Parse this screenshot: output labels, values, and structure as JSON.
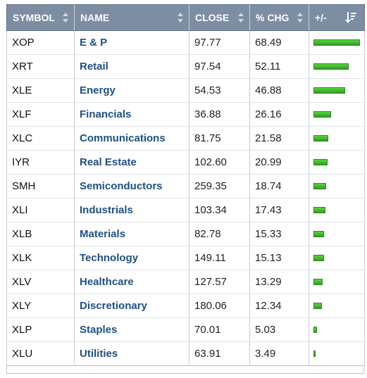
{
  "columns": {
    "symbol": "SYMBOL",
    "name": "NAME",
    "close": "CLOSE",
    "pct_chg": "% CHG",
    "plus_minus": "+/-"
  },
  "colors": {
    "header_bg": "#7d8ea3",
    "bar_green": "#3fb82c",
    "name_link": "#234f83"
  },
  "bar_max": 68.49,
  "rows": [
    {
      "symbol": "XOP",
      "name": "E & P",
      "close": "97.77",
      "pct": "68.49",
      "pct_value": 68.49
    },
    {
      "symbol": "XRT",
      "name": "Retail",
      "close": "97.54",
      "pct": "52.11",
      "pct_value": 52.11
    },
    {
      "symbol": "XLE",
      "name": "Energy",
      "close": "54.53",
      "pct": "46.88",
      "pct_value": 46.88
    },
    {
      "symbol": "XLF",
      "name": "Financials",
      "close": "36.88",
      "pct": "26.16",
      "pct_value": 26.16
    },
    {
      "symbol": "XLC",
      "name": "Communications",
      "close": "81.75",
      "pct": "21.58",
      "pct_value": 21.58
    },
    {
      "symbol": "IYR",
      "name": "Real Estate",
      "close": "102.60",
      "pct": "20.99",
      "pct_value": 20.99
    },
    {
      "symbol": "SMH",
      "name": "Semiconductors",
      "close": "259.35",
      "pct": "18.74",
      "pct_value": 18.74
    },
    {
      "symbol": "XLI",
      "name": "Industrials",
      "close": "103.34",
      "pct": "17.43",
      "pct_value": 17.43
    },
    {
      "symbol": "XLB",
      "name": "Materials",
      "close": "82.78",
      "pct": "15.33",
      "pct_value": 15.33
    },
    {
      "symbol": "XLK",
      "name": "Technology",
      "close": "149.11",
      "pct": "15.13",
      "pct_value": 15.13
    },
    {
      "symbol": "XLV",
      "name": "Healthcare",
      "close": "127.57",
      "pct": "13.29",
      "pct_value": 13.29
    },
    {
      "symbol": "XLY",
      "name": "Discretionary",
      "close": "180.06",
      "pct": "12.34",
      "pct_value": 12.34
    },
    {
      "symbol": "XLP",
      "name": "Staples",
      "close": "70.01",
      "pct": "5.03",
      "pct_value": 5.03
    },
    {
      "symbol": "XLU",
      "name": "Utilities",
      "close": "63.91",
      "pct": "3.49",
      "pct_value": 3.49
    }
  ]
}
